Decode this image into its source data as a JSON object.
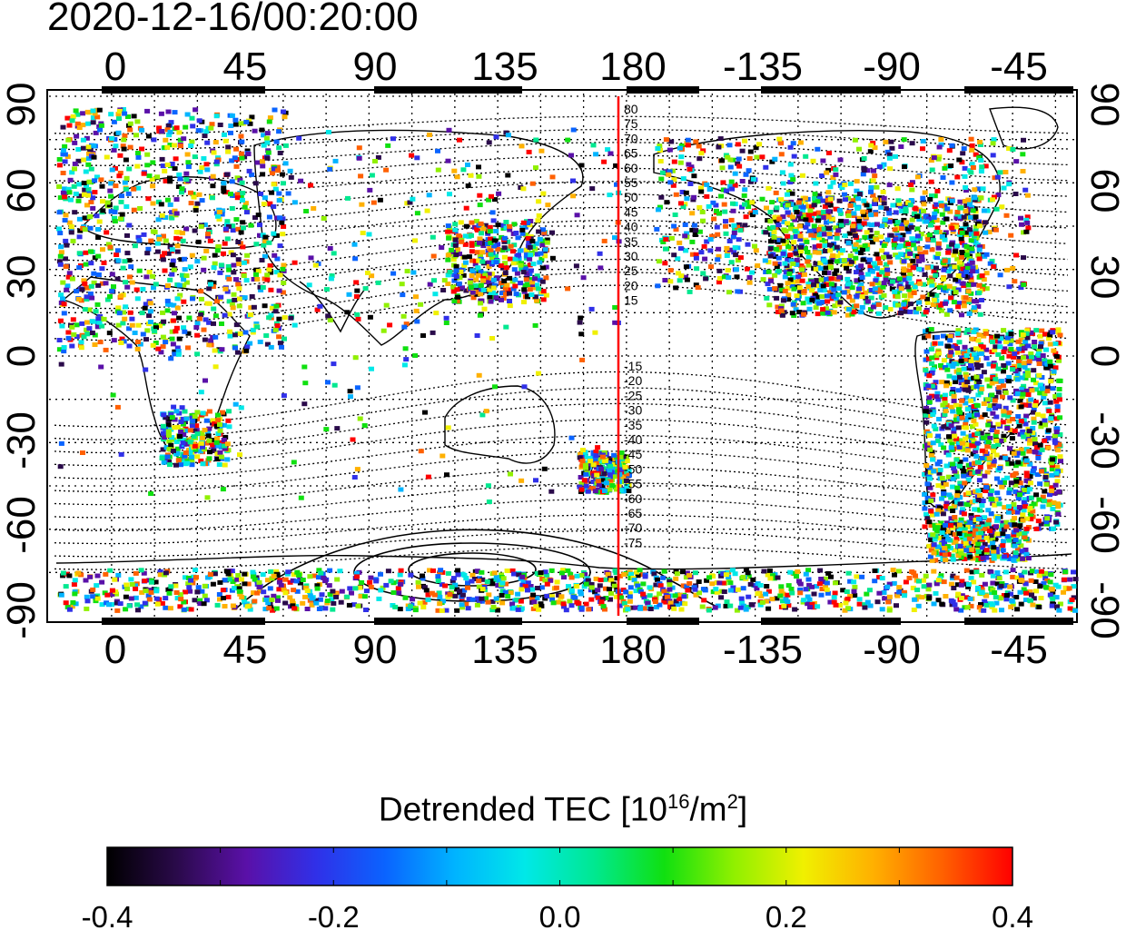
{
  "timestamp": "2020-12-16/00:20:00",
  "map": {
    "top_lon_labels": [
      "0",
      "45",
      "90",
      "135",
      "180",
      "-135",
      "-90",
      "-45"
    ],
    "bottom_lon_labels": [
      "0",
      "45",
      "90",
      "135",
      "180",
      "-135",
      "-90",
      "-45"
    ],
    "left_lat_labels": [
      "90",
      "60",
      "30",
      "0",
      "-30",
      "-60",
      "-90"
    ],
    "right_lat_labels": [
      "90",
      "60",
      "30",
      "0",
      "-30",
      "-60",
      "-90"
    ],
    "central_longitude": 157.5,
    "meridian_line": {
      "longitude": 175,
      "color": "#ff0000"
    },
    "contour_labels_north": [
      "80",
      "75",
      "70",
      "65",
      "60",
      "55",
      "50",
      "45",
      "40",
      "35",
      "30",
      "25",
      "20",
      "15"
    ],
    "contour_labels_south": [
      "-15",
      "-20",
      "-25",
      "-30",
      "-35",
      "-40",
      "-45",
      "-50",
      "-55",
      "-60",
      "-65",
      "-70",
      "-75"
    ]
  },
  "colorbar": {
    "title_text": "Detrended TEC  [10",
    "title_exp": "16",
    "title_unit": "/m",
    "title_unit_exp": "2",
    "title_close": "]",
    "min": -0.4,
    "max": 0.4,
    "tick_labels": [
      "-0.4",
      "-0.2",
      "0.0",
      "0.2",
      "0.4"
    ],
    "colors": [
      "#000000",
      "#2a0a4a",
      "#5a10a8",
      "#3030e8",
      "#0a64ff",
      "#00b4ff",
      "#00e8e8",
      "#00e890",
      "#10e010",
      "#90f000",
      "#f0f000",
      "#ffb000",
      "#ff6000",
      "#ff0000"
    ]
  }
}
